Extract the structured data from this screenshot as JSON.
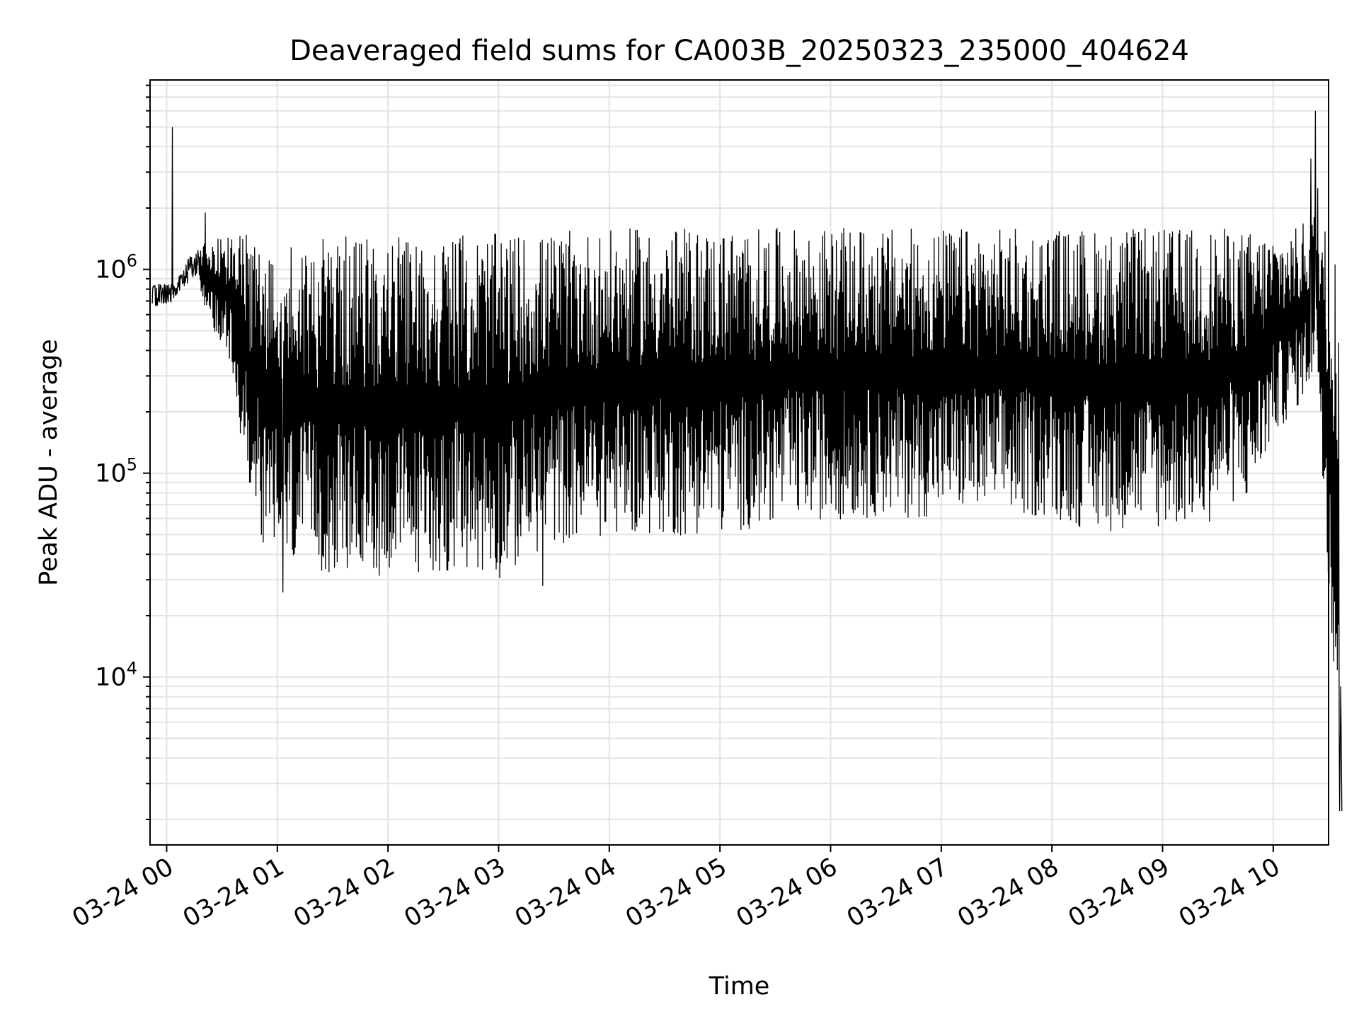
{
  "chart_data": {
    "type": "line",
    "title": "Deaveraged field sums for CA003B_20250323_235000_404624",
    "xlabel": "Time",
    "ylabel": "Peak ADU - average",
    "x_tick_labels": [
      "03-24 00",
      "03-24 01",
      "03-24 02",
      "03-24 03",
      "03-24 04",
      "03-24 05",
      "03-24 06",
      "03-24 07",
      "03-24 08",
      "03-24 09",
      "03-24 10"
    ],
    "y_tick_labels": [
      {
        "value": 10000,
        "base": "10",
        "exp": "4"
      },
      {
        "value": 100000,
        "base": "10",
        "exp": "5"
      },
      {
        "value": 1000000,
        "base": "10",
        "exp": "6"
      }
    ],
    "xlim": [
      "2025-03-23 23:51",
      "2025-03-24 10:30"
    ],
    "ylim": [
      1500,
      8500000
    ],
    "y_scale": "log",
    "grid": true,
    "line_color": "#000000",
    "series": [
      {
        "envelope": {
          "x_hours": [
            0.0,
            0.1,
            0.2,
            0.3,
            0.4,
            0.5,
            0.6,
            0.7,
            0.8,
            0.9,
            1.0,
            1.2,
            1.4,
            1.6,
            1.8,
            2.0,
            2.2,
            2.4,
            2.6,
            2.8,
            3.0,
            3.2,
            3.4,
            3.6,
            3.8,
            4.0,
            4.2,
            4.4,
            4.6,
            4.8,
            5.0,
            5.2,
            5.4,
            5.6,
            5.8,
            6.0,
            6.2,
            6.4,
            6.6,
            6.8,
            7.0,
            7.2,
            7.4,
            7.6,
            7.8,
            8.0,
            8.2,
            8.4,
            8.6,
            8.8,
            9.0,
            9.2,
            9.4,
            9.6,
            9.8,
            10.0,
            10.2,
            10.4,
            10.6
          ],
          "low": [
            550000,
            680000,
            700000,
            750000,
            550000,
            400000,
            300000,
            100000,
            60000,
            40000,
            35000,
            33000,
            32000,
            31000,
            31000,
            31000,
            31000,
            32000,
            32000,
            31000,
            30000,
            35000,
            42000,
            45000,
            48000,
            48000,
            50000,
            50000,
            48000,
            50000,
            50000,
            52000,
            55000,
            58000,
            60000,
            58000,
            60000,
            60000,
            60000,
            60000,
            62000,
            63000,
            62000,
            62000,
            60000,
            60000,
            55000,
            50000,
            52000,
            55000,
            52000,
            55000,
            55000,
            70000,
            70000,
            150000,
            200000,
            300000,
            2500
          ],
          "high": [
            850000,
            900000,
            1150000,
            1300000,
            1500000,
            1600000,
            1550000,
            1500000,
            1450000,
            1450000,
            1450000,
            1450000,
            1450000,
            1450000,
            1450000,
            1450000,
            1450000,
            1450000,
            1500000,
            1500000,
            1500000,
            1500000,
            1500000,
            1550000,
            1550000,
            1550000,
            1600000,
            1600000,
            1600000,
            1600000,
            1600000,
            1600000,
            1600000,
            1600000,
            1600000,
            1600000,
            1600000,
            1600000,
            1600000,
            1600000,
            1600000,
            1600000,
            1600000,
            1600000,
            1600000,
            1600000,
            1600000,
            1600000,
            1600000,
            1600000,
            1600000,
            1600000,
            1600000,
            1600000,
            1550000,
            1550000,
            1600000,
            2000000,
            1200000
          ]
        },
        "spikes": [
          {
            "hour": 0.05,
            "value": 5000000
          },
          {
            "hour": 0.35,
            "value": 1900000
          },
          {
            "hour": 1.05,
            "value": 26000
          },
          {
            "hour": 3.4,
            "value": 28000
          },
          {
            "hour": 10.34,
            "value": 3500000
          },
          {
            "hour": 10.38,
            "value": 6000000
          },
          {
            "hour": 10.4,
            "value": 2500000
          },
          {
            "hour": 10.62,
            "value": 2200
          }
        ]
      }
    ]
  }
}
